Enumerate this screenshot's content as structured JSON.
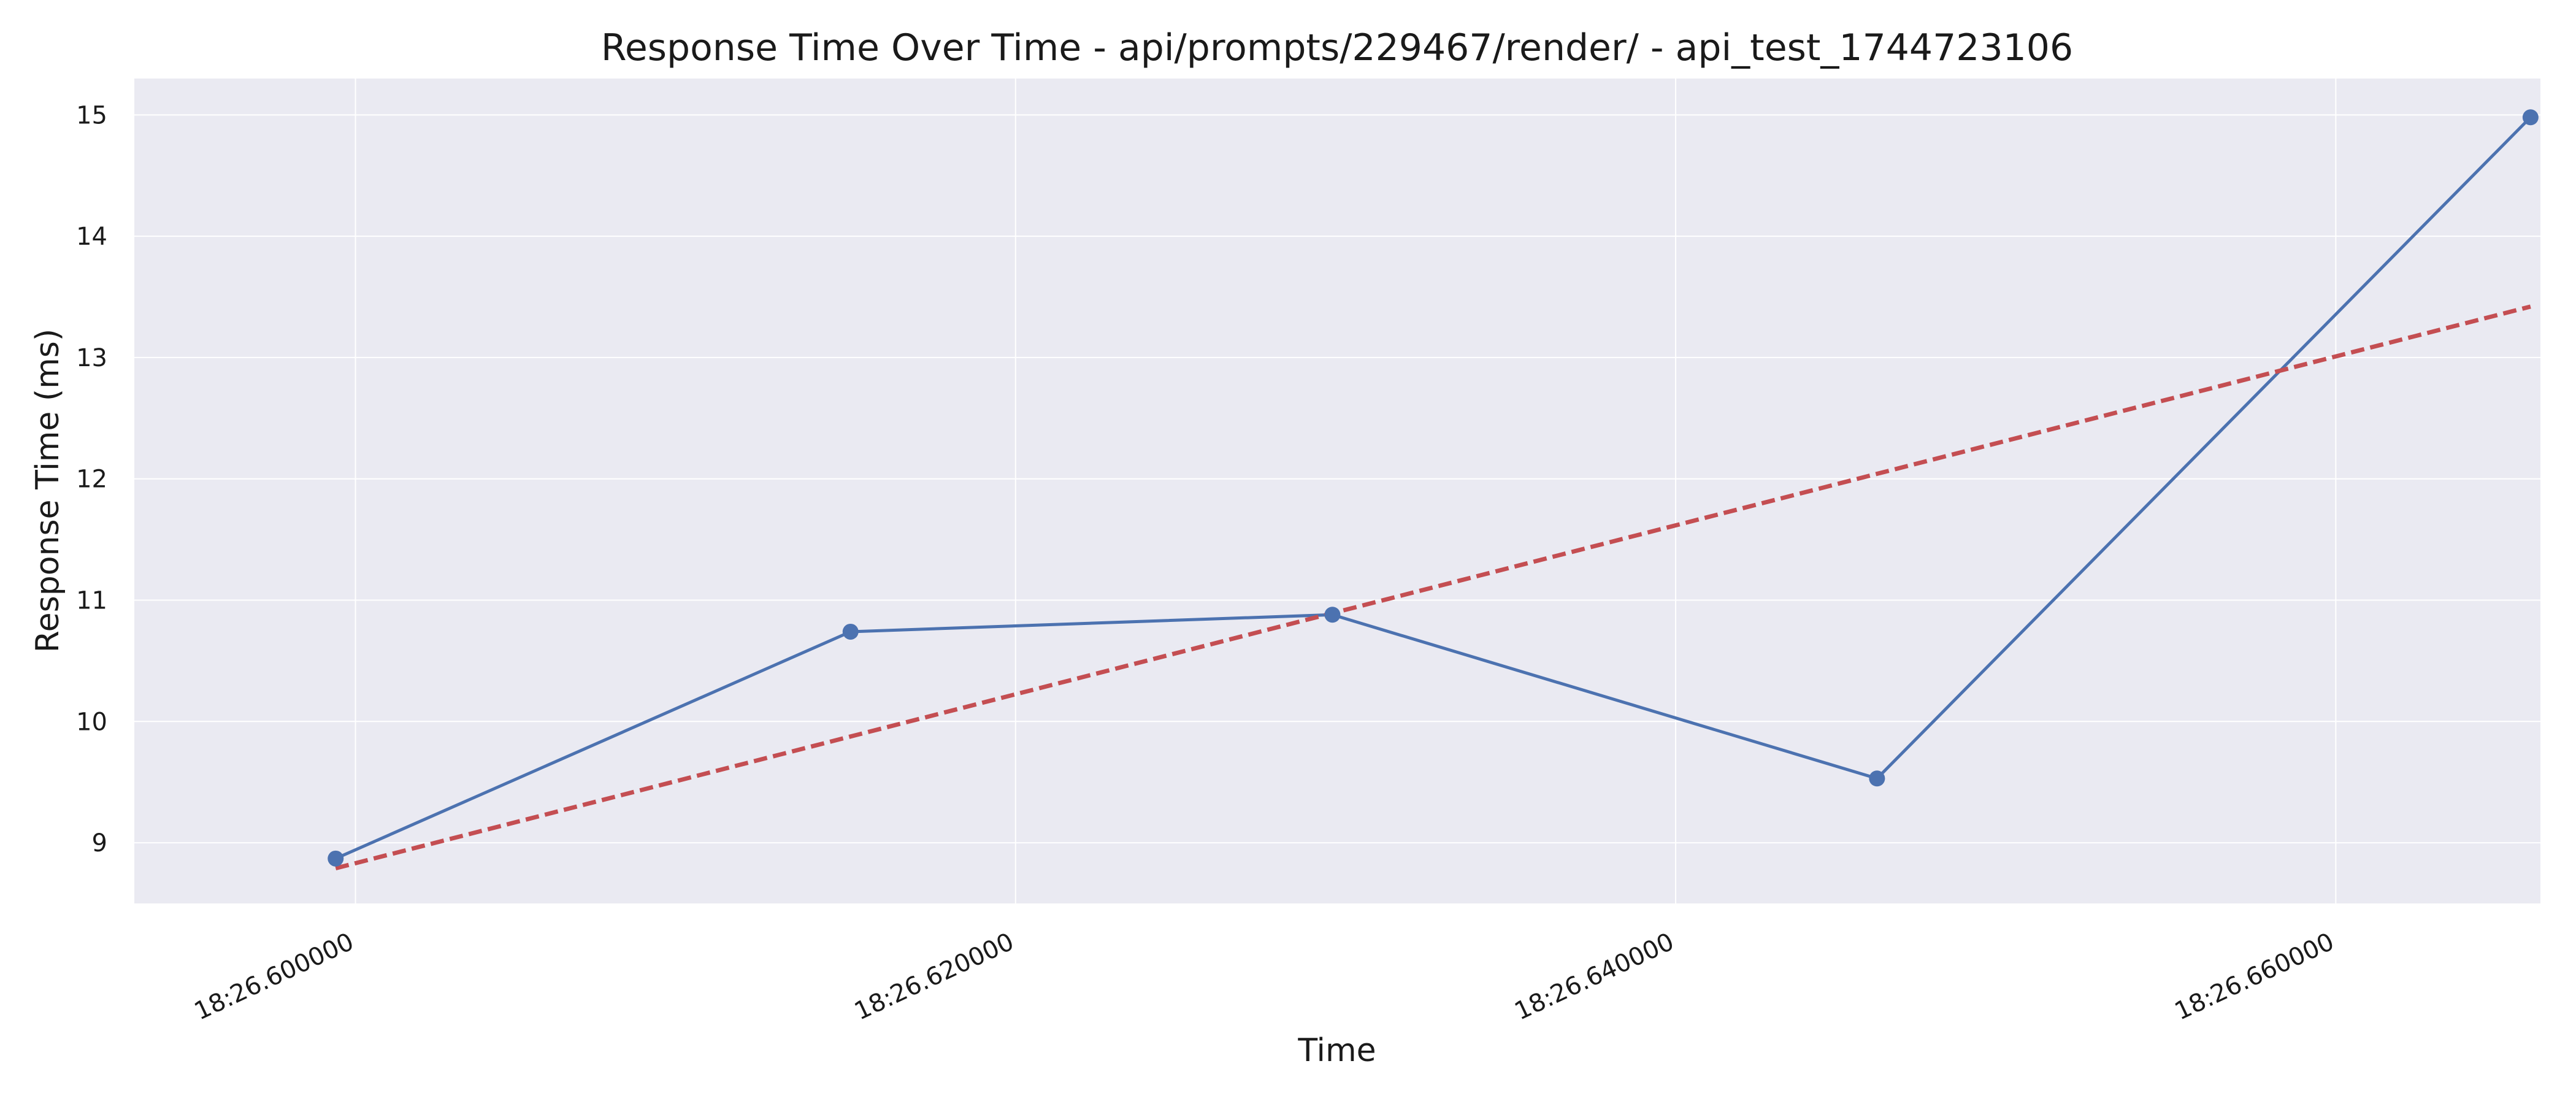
{
  "chart_data": {
    "type": "line",
    "title": "Response Time Over Time - api/prompts/229467/render/ - api_test_1744723106",
    "xlabel": "Time",
    "ylabel": "Response Time (ms)",
    "x_ticks": [
      "18:26.600000",
      "18:26.620000",
      "18:26.640000",
      "18:26.660000"
    ],
    "x_tick_values": [
      0.6,
      0.62,
      0.64,
      0.66
    ],
    "xlim": [
      0.5933,
      0.6662
    ],
    "y_ticks": [
      9,
      10,
      11,
      12,
      13,
      14,
      15
    ],
    "ylim": [
      8.5,
      15.3
    ],
    "grid": true,
    "series": [
      {
        "kind": "line-markers",
        "color": "#4c72b0",
        "x": [
          0.5994,
          0.615,
          0.6296,
          0.6461,
          0.6659
        ],
        "y": [
          8.87,
          10.74,
          10.88,
          9.53,
          14.98
        ]
      },
      {
        "kind": "trend-dashed",
        "color": "#c44e52",
        "x": [
          0.5994,
          0.6659
        ],
        "y": [
          8.79,
          13.42
        ]
      }
    ]
  }
}
